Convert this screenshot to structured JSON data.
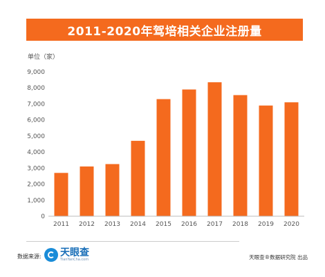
{
  "title": "2011-2020年驾培相关企业注册量",
  "colors": {
    "bar": "#f46a1e",
    "title_bg": "#f46a1e"
  },
  "footer": {
    "source_label": "数据来源:",
    "logo_cn": "天眼查",
    "logo_en": "TianYanCha.com",
    "publisher": "天眼查®数据研究院 出品"
  },
  "chart_data": {
    "type": "bar",
    "title": "2011-2020年驾培相关企业注册量",
    "unit_label": "单位（家）",
    "categories": [
      "2011",
      "2012",
      "2013",
      "2014",
      "2015",
      "2016",
      "2017",
      "2018",
      "2019",
      "2020"
    ],
    "values": [
      2700,
      3100,
      3250,
      4700,
      7300,
      7900,
      8350,
      7550,
      6900,
      7100
    ],
    "ylim": [
      0,
      9000
    ],
    "yticks": [
      0,
      1000,
      2000,
      3000,
      4000,
      5000,
      6000,
      7000,
      8000,
      9000
    ],
    "ytick_labels": [
      "0",
      "1,000",
      "2,000",
      "3,000",
      "4,000",
      "5,000",
      "6,000",
      "7,000",
      "8,000",
      "9,000"
    ],
    "grid": false,
    "legend": "none"
  }
}
